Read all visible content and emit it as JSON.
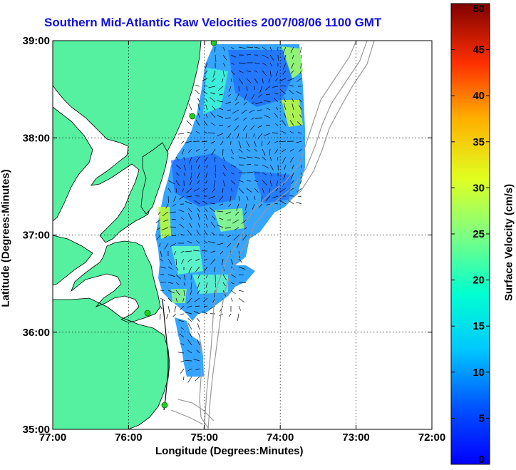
{
  "title": "Southern Mid-Atlantic Raw Velocities 2007/08/06 1100 GMT",
  "xlabel": "Longitude (Degrees:Minutes)",
  "ylabel": "Latitude (Degrees:Minutes)",
  "colorbar_label": "Surface Velocity (cm/s)",
  "x_ticks": [
    "77:00",
    "76:00",
    "75:00",
    "74:00",
    "73:00",
    "72:00"
  ],
  "y_ticks": [
    "39:00",
    "38:00",
    "37:00",
    "36:00",
    "35:00"
  ],
  "colorbar_ticks": [
    "0",
    "5",
    "10",
    "15",
    "20",
    "25",
    "30",
    "35",
    "40",
    "45",
    "50"
  ],
  "colors": {
    "land": "#55f0a0",
    "ocean": "#ffffff",
    "coastline": "#000000",
    "bathymetry": "#999999",
    "station": "#22cc22",
    "title": "#1010e0"
  },
  "chart_data": {
    "type": "map",
    "title": "Southern Mid-Atlantic Raw Velocities 2007/08/06 1100 GMT",
    "xlabel": "Longitude (Degrees:Minutes)",
    "ylabel": "Latitude (Degrees:Minutes)",
    "xlim": [
      -77,
      -72
    ],
    "ylim": [
      35,
      39
    ],
    "colorbar": {
      "label": "Surface Velocity (cm/s)",
      "range": [
        0,
        50
      ],
      "colormap": "jet"
    },
    "grid": true,
    "stations": [
      {
        "lon": -74.9,
        "lat": 39.0
      },
      {
        "lon": -75.15,
        "lat": 38.2
      },
      {
        "lon": -75.6,
        "lat": 36.2
      },
      {
        "lon": -75.5,
        "lat": 35.25
      }
    ]
  }
}
